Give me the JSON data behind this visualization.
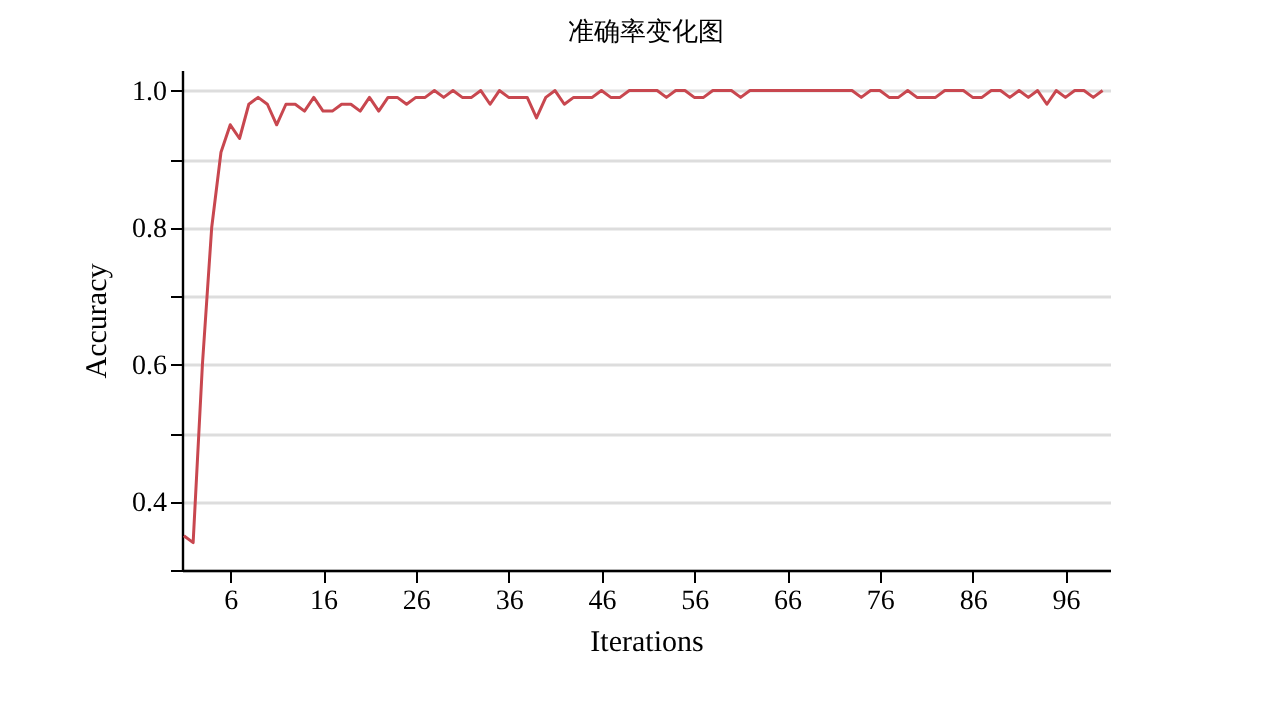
{
  "chart_data": {
    "type": "line",
    "title": "准确率变化图",
    "xlabel": "Iterations",
    "ylabel": "Accuracy",
    "x": [
      1,
      2,
      3,
      4,
      5,
      6,
      7,
      8,
      9,
      10,
      11,
      12,
      13,
      14,
      15,
      16,
      17,
      18,
      19,
      20,
      21,
      22,
      23,
      24,
      25,
      26,
      27,
      28,
      29,
      30,
      31,
      32,
      33,
      34,
      35,
      36,
      37,
      38,
      39,
      40,
      41,
      42,
      43,
      44,
      45,
      46,
      47,
      48,
      49,
      50,
      51,
      52,
      53,
      54,
      55,
      56,
      57,
      58,
      59,
      60,
      61,
      62,
      63,
      64,
      65,
      66,
      67,
      68,
      69,
      70,
      71,
      72,
      73,
      74,
      75,
      76,
      77,
      78,
      79,
      80,
      81,
      82,
      83,
      84,
      85,
      86,
      87,
      88,
      89,
      90,
      91,
      92,
      93,
      94,
      95,
      96,
      97,
      98,
      99,
      100
    ],
    "series": [
      {
        "color": "#c8474f",
        "values": [
          0.35,
          0.34,
          0.6,
          0.8,
          0.91,
          0.95,
          0.93,
          0.98,
          0.99,
          0.98,
          0.95,
          0.98,
          0.98,
          0.97,
          0.99,
          0.97,
          0.97,
          0.98,
          0.98,
          0.97,
          0.99,
          0.97,
          0.99,
          0.99,
          0.98,
          0.99,
          0.99,
          1.0,
          0.99,
          1.0,
          0.99,
          0.99,
          1.0,
          0.98,
          1.0,
          0.99,
          0.99,
          0.99,
          0.96,
          0.99,
          1.0,
          0.98,
          0.99,
          0.99,
          0.99,
          1.0,
          0.99,
          0.99,
          1.0,
          1.0,
          1.0,
          1.0,
          0.99,
          1.0,
          1.0,
          0.99,
          0.99,
          1.0,
          1.0,
          1.0,
          0.99,
          1.0,
          1.0,
          1.0,
          1.0,
          1.0,
          1.0,
          1.0,
          1.0,
          1.0,
          1.0,
          1.0,
          1.0,
          0.99,
          1.0,
          1.0,
          0.99,
          0.99,
          1.0,
          0.99,
          0.99,
          0.99,
          1.0,
          1.0,
          1.0,
          0.99,
          0.99,
          1.0,
          1.0,
          0.99,
          1.0,
          0.99,
          1.0,
          0.98,
          1.0,
          0.99,
          1.0,
          1.0,
          0.99,
          1.0
        ]
      }
    ],
    "xlim": [
      0.8,
      100.8
    ],
    "xticks": [
      6,
      16,
      26,
      36,
      46,
      56,
      66,
      76,
      86,
      96
    ],
    "ylim": [
      0.3,
      1.03
    ],
    "yticks": [
      {
        "value": 0.3,
        "label": null
      },
      0.4,
      {
        "value": 0.5,
        "label": null
      },
      0.6,
      {
        "value": 0.7,
        "label": null
      },
      0.8,
      {
        "value": 0.9,
        "label": null
      },
      {
        "value": 1.0,
        "label": "1.0"
      }
    ],
    "grid": "y"
  }
}
